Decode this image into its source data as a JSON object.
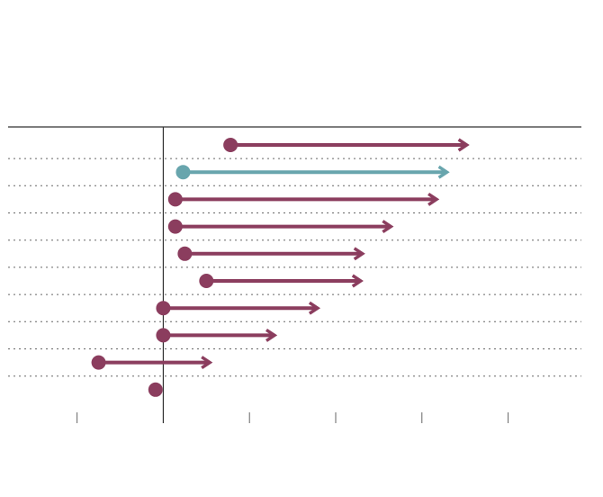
{
  "chart_data": {
    "type": "arrow",
    "categories": [
      null,
      null,
      null,
      null,
      null,
      null,
      null,
      null,
      null,
      null
    ],
    "start": [
      0.78,
      0.23,
      0.14,
      0.14,
      0.25,
      0.5,
      0.0,
      0.0,
      -0.75,
      -0.09
    ],
    "end": [
      3.52,
      3.29,
      3.17,
      2.64,
      2.31,
      2.29,
      1.79,
      1.29,
      0.54,
      null
    ],
    "colors": [
      "#8b3d5e",
      "#68a5ad",
      "#8b3d5e",
      "#8b3d5e",
      "#8b3d5e",
      "#8b3d5e",
      "#8b3d5e",
      "#8b3d5e",
      "#8b3d5e",
      "#8b3d5e"
    ],
    "xlim": [
      -1.8,
      4.85
    ],
    "xticks": [
      -1,
      0,
      1,
      2,
      3,
      4
    ],
    "grid": true
  }
}
